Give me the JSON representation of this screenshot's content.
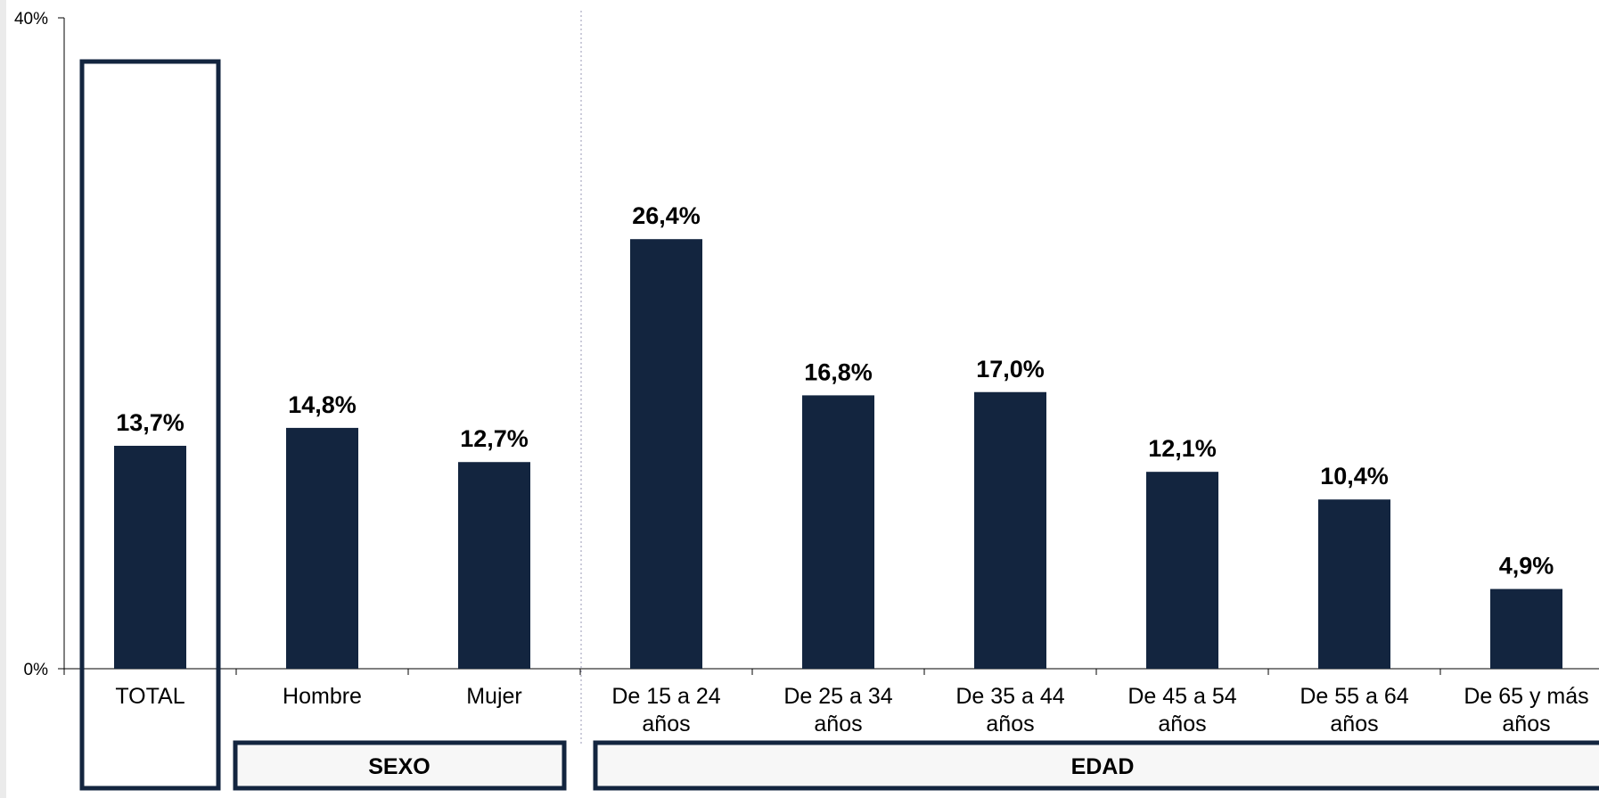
{
  "chart_data": {
    "type": "bar",
    "title": "",
    "xlabel": "",
    "ylabel": "",
    "ylim": [
      0,
      40
    ],
    "y_ticks": [
      "0%",
      "40%"
    ],
    "categories": [
      [
        "TOTAL"
      ],
      [
        "Hombre"
      ],
      [
        "Mujer"
      ],
      [
        "De 15 a 24",
        "años"
      ],
      [
        "De 25 a 34",
        "años"
      ],
      [
        "De 35 a 44",
        "años"
      ],
      [
        "De 45 a 54",
        "años"
      ],
      [
        "De 55 a 64",
        "años"
      ],
      [
        "De 65 y más",
        "años"
      ]
    ],
    "values": [
      13.7,
      14.8,
      12.7,
      26.4,
      16.8,
      17.0,
      12.1,
      10.4,
      4.9
    ],
    "value_labels": [
      "13,7%",
      "14,8%",
      "12,7%",
      "26,4%",
      "16,8%",
      "17,0%",
      "12,1%",
      "10,4%",
      "4,9%"
    ],
    "groups": [
      {
        "label": "SEXO",
        "categories": [
          "Hombre",
          "Mujer"
        ]
      },
      {
        "label": "EDAD",
        "categories": [
          "De 15 a 24 años",
          "De 25 a 34 años",
          "De 35 a 44 años",
          "De 45 a 54 años",
          "De 55 a 64 años",
          "De 65 y más años"
        ]
      }
    ],
    "highlight": "TOTAL",
    "bar_color": "#13253f",
    "grid": false
  }
}
